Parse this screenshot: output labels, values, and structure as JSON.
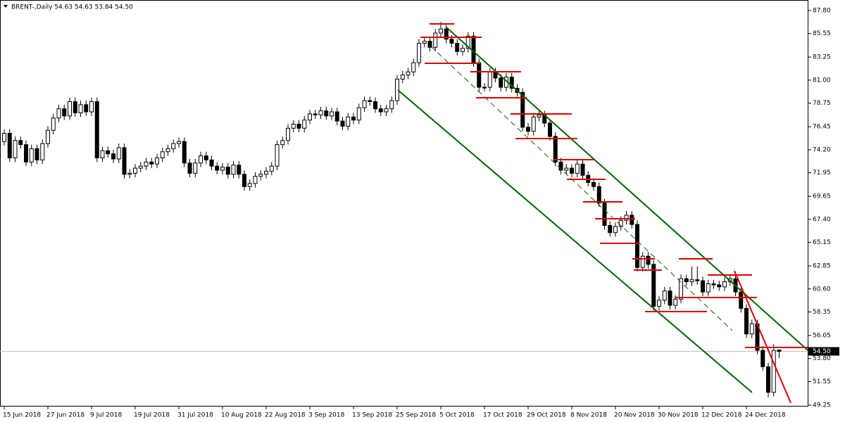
{
  "chart_data": {
    "type": "candlestick",
    "title": "BRENT-,Daily  54.63 54.63 53.84 54.50",
    "categories": [
      "15 Jun 2018",
      null,
      null,
      null,
      null,
      null,
      null,
      null,
      "27 Jun 2018",
      null,
      null,
      null,
      null,
      null,
      null,
      null,
      "9 Jul 2018",
      null,
      null,
      null,
      null,
      null,
      null,
      null,
      "19 Jul 2018",
      null,
      null,
      null,
      null,
      null,
      null,
      null,
      "31 Jul 2018",
      null,
      null,
      null,
      null,
      null,
      null,
      null,
      "10 Aug 2018",
      null,
      null,
      null,
      null,
      null,
      null,
      null,
      "22 Aug 2018",
      null,
      null,
      null,
      null,
      null,
      null,
      null,
      "3 Sep 2018",
      null,
      null,
      null,
      null,
      null,
      null,
      null,
      "13 Sep 2018",
      null,
      null,
      null,
      null,
      null,
      null,
      null,
      "25 Sep 2018",
      null,
      null,
      null,
      null,
      null,
      null,
      null,
      "5 Oct 2018",
      null,
      null,
      null,
      null,
      null,
      null,
      null,
      "17 Oct 2018",
      null,
      null,
      null,
      null,
      null,
      null,
      null,
      "29 Oct 2018",
      null,
      null,
      null,
      null,
      null,
      null,
      null,
      "8 Nov 2018",
      null,
      null,
      null,
      null,
      null,
      null,
      null,
      "20 Nov 2018",
      null,
      null,
      null,
      null,
      null,
      null,
      null,
      "30 Nov 2018",
      null,
      null,
      null,
      null,
      null,
      null,
      null,
      "12 Dec 2018",
      null,
      null,
      null,
      null,
      null,
      null,
      null,
      "24 Dec 2018",
      null,
      null,
      null,
      null,
      null,
      null
    ],
    "open": [
      75.0,
      75.8,
      73.4,
      75.1,
      74.7,
      73.0,
      74.3,
      73.2,
      74.8,
      76.1,
      77.3,
      78.2,
      77.5,
      78.9,
      77.8,
      78.6,
      77.9,
      78.9,
      73.4,
      74.1,
      73.8,
      73.3,
      74.4,
      71.8,
      71.9,
      72.4,
      72.6,
      73.0,
      72.8,
      73.4,
      74.0,
      74.3,
      74.8,
      75.0,
      72.9,
      71.9,
      72.9,
      73.6,
      73.2,
      72.6,
      72.2,
      72.5,
      71.8,
      72.7,
      71.8,
      70.6,
      70.9,
      71.6,
      71.8,
      72.1,
      72.6,
      74.7,
      75.1,
      76.3,
      76.7,
      76.3,
      77.1,
      77.7,
      77.6,
      78.0,
      77.5,
      77.9,
      77.0,
      76.5,
      77.4,
      77.1,
      78.3,
      79.0,
      78.9,
      78.2,
      77.9,
      78.2,
      79.0,
      81.1,
      81.5,
      81.8,
      82.7,
      84.6,
      84.8,
      84.2,
      85.6,
      86.0,
      85.0,
      84.6,
      83.8,
      84.1,
      85.3,
      82.7,
      80.3,
      80.3,
      81.8,
      81.2,
      80.3,
      81.3,
      80.2,
      79.8,
      76.4,
      76.0,
      77.4,
      77.6,
      76.8,
      75.5,
      73.0,
      72.2,
      72.4,
      71.9,
      72.8,
      71.7,
      71.0,
      70.6,
      69.0,
      66.8,
      66.1,
      66.7,
      67.3,
      67.8,
      66.9,
      62.7,
      63.8,
      63.0,
      58.9,
      59.5,
      60.4,
      59.0,
      59.6,
      61.6,
      61.3,
      61.5,
      61.4,
      60.3,
      61.1,
      61.0,
      60.8,
      61.3,
      61.6,
      60.3,
      58.7,
      56.2,
      57.2,
      54.6,
      53.0,
      50.5,
      54.63
    ],
    "high": [
      76.2,
      76.2,
      75.5,
      75.5,
      75.1,
      74.7,
      74.7,
      75.2,
      76.5,
      77.7,
      78.6,
      78.6,
      79.3,
      79.3,
      79.0,
      79.0,
      79.3,
      79.3,
      74.5,
      74.5,
      74.2,
      74.8,
      74.8,
      72.3,
      72.8,
      73.0,
      73.4,
      73.4,
      73.8,
      74.4,
      74.7,
      75.2,
      75.4,
      75.4,
      73.3,
      73.3,
      74.0,
      74.0,
      73.6,
      73.0,
      72.9,
      72.9,
      73.1,
      73.1,
      72.2,
      71.3,
      72.0,
      72.2,
      72.5,
      73.0,
      75.1,
      75.5,
      76.7,
      77.1,
      77.1,
      77.5,
      78.1,
      78.1,
      78.4,
      78.4,
      78.3,
      78.3,
      77.4,
      77.8,
      77.8,
      78.7,
      79.4,
      79.4,
      79.3,
      78.6,
      78.6,
      79.4,
      81.5,
      81.9,
      82.2,
      83.1,
      85.0,
      85.2,
      85.2,
      86.0,
      86.7,
      86.4,
      85.4,
      85.0,
      84.5,
      85.7,
      85.7,
      83.1,
      80.7,
      82.2,
      82.2,
      81.6,
      81.7,
      81.7,
      80.6,
      80.2,
      76.8,
      77.8,
      78.0,
      78.0,
      77.2,
      75.9,
      73.4,
      72.8,
      72.8,
      73.2,
      73.2,
      72.1,
      71.4,
      71.0,
      69.4,
      67.2,
      67.1,
      67.7,
      68.2,
      68.2,
      67.3,
      64.2,
      64.2,
      63.4,
      59.9,
      60.8,
      60.8,
      60.0,
      62.0,
      62.0,
      62.8,
      62.8,
      61.8,
      61.5,
      61.5,
      61.4,
      61.7,
      62.0,
      62.0,
      60.7,
      59.1,
      57.6,
      57.6,
      55.0,
      53.4,
      55.2,
      54.63
    ],
    "low": [
      74.6,
      73.0,
      73.0,
      74.3,
      72.6,
      72.6,
      72.8,
      72.8,
      74.4,
      75.7,
      76.9,
      77.1,
      77.1,
      77.4,
      77.4,
      77.5,
      77.5,
      73.0,
      73.0,
      73.4,
      72.9,
      72.9,
      71.4,
      71.4,
      71.5,
      72.0,
      72.2,
      72.4,
      72.4,
      73.0,
      73.6,
      73.9,
      74.4,
      72.5,
      71.5,
      71.5,
      72.5,
      72.8,
      72.2,
      71.8,
      71.8,
      71.4,
      71.4,
      71.4,
      70.2,
      70.2,
      70.5,
      71.2,
      71.4,
      71.7,
      72.2,
      74.3,
      74.7,
      75.9,
      75.9,
      75.9,
      76.7,
      77.2,
      77.2,
      77.1,
      77.1,
      76.6,
      76.1,
      76.1,
      76.7,
      76.7,
      77.9,
      78.5,
      77.8,
      77.5,
      77.5,
      77.8,
      78.6,
      80.7,
      81.1,
      81.4,
      82.3,
      84.2,
      83.8,
      83.8,
      85.2,
      84.6,
      84.2,
      83.4,
      83.4,
      83.7,
      82.3,
      79.9,
      79.9,
      79.9,
      80.8,
      79.9,
      79.9,
      79.8,
      79.4,
      76.0,
      75.6,
      75.6,
      77.0,
      76.4,
      75.1,
      72.6,
      71.8,
      71.8,
      71.5,
      71.5,
      71.3,
      70.6,
      70.2,
      68.6,
      66.4,
      65.7,
      65.7,
      66.3,
      66.9,
      66.5,
      62.3,
      62.3,
      62.6,
      58.5,
      58.5,
      59.1,
      58.6,
      58.6,
      59.2,
      60.9,
      60.9,
      61.0,
      59.9,
      59.9,
      60.6,
      60.4,
      60.4,
      60.9,
      59.9,
      58.3,
      55.8,
      55.8,
      54.2,
      52.6,
      50.0,
      50.1,
      53.84
    ],
    "close": [
      75.8,
      73.4,
      75.1,
      74.7,
      73.0,
      74.3,
      73.2,
      74.8,
      76.1,
      77.3,
      78.2,
      77.5,
      78.9,
      77.8,
      78.6,
      77.9,
      78.9,
      73.4,
      74.1,
      73.8,
      73.3,
      74.4,
      71.8,
      71.9,
      72.4,
      72.6,
      73.0,
      72.8,
      73.4,
      74.0,
      74.3,
      74.8,
      75.0,
      72.9,
      71.9,
      72.9,
      73.6,
      73.2,
      72.6,
      72.2,
      72.5,
      71.8,
      72.7,
      71.8,
      70.6,
      70.9,
      71.6,
      71.8,
      72.1,
      72.6,
      74.7,
      75.1,
      76.3,
      76.7,
      76.3,
      77.1,
      77.7,
      77.6,
      78.0,
      77.5,
      77.9,
      77.0,
      76.5,
      77.4,
      77.1,
      78.3,
      79.0,
      78.9,
      78.2,
      77.9,
      78.2,
      79.0,
      81.1,
      81.5,
      81.8,
      82.7,
      84.6,
      84.8,
      84.2,
      85.6,
      86.0,
      85.0,
      84.6,
      83.8,
      84.1,
      85.3,
      82.7,
      80.3,
      80.3,
      81.8,
      81.2,
      80.3,
      81.3,
      80.2,
      79.8,
      76.4,
      76.0,
      77.4,
      77.6,
      76.8,
      75.5,
      73.0,
      72.2,
      72.4,
      71.9,
      72.8,
      71.7,
      71.0,
      70.6,
      69.0,
      66.8,
      66.1,
      66.7,
      67.3,
      67.8,
      66.9,
      62.7,
      63.8,
      63.0,
      58.9,
      59.5,
      60.4,
      59.0,
      59.6,
      61.6,
      61.3,
      61.5,
      61.4,
      60.3,
      61.1,
      61.0,
      60.8,
      61.3,
      61.6,
      60.3,
      58.7,
      56.2,
      57.2,
      54.6,
      53.0,
      50.5,
      54.6,
      54.5
    ],
    "ylim": [
      49.11,
      88.69
    ],
    "yticks": [
      {
        "value": 49.25,
        "label": "49.25"
      },
      {
        "value": 51.55,
        "label": "51.55"
      },
      {
        "value": 53.8,
        "label": "53.80"
      },
      {
        "value": 56.05,
        "label": "56.05"
      },
      {
        "value": 58.35,
        "label": "58.35"
      },
      {
        "value": 60.6,
        "label": "60.60"
      },
      {
        "value": 62.85,
        "label": "62.85"
      },
      {
        "value": 65.15,
        "label": "65.15"
      },
      {
        "value": 67.4,
        "label": "67.40"
      },
      {
        "value": 69.65,
        "label": "69.65"
      },
      {
        "value": 71.95,
        "label": "71.95"
      },
      {
        "value": 74.2,
        "label": "74.20"
      },
      {
        "value": 76.45,
        "label": "76.45"
      },
      {
        "value": 78.75,
        "label": "78.75"
      },
      {
        "value": 81,
        "label": "81.00"
      },
      {
        "value": 83.25,
        "label": "83.25"
      },
      {
        "value": 85.55,
        "label": "85.55"
      },
      {
        "value": 87.8,
        "label": "87.80"
      }
    ],
    "last_price": {
      "value": 54.5,
      "label": "54.50"
    }
  }
}
